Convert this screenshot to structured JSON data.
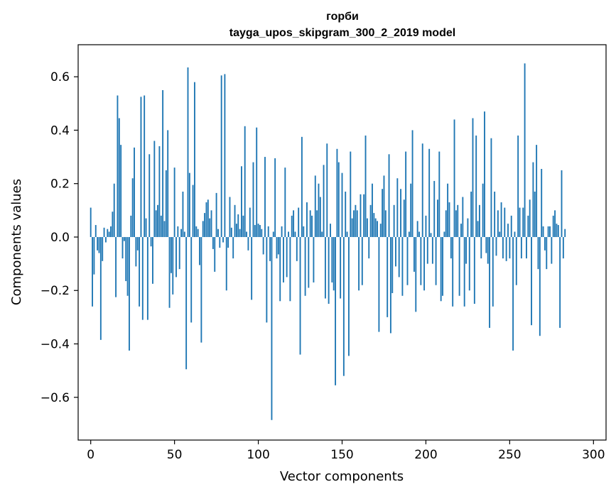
{
  "chart_data": {
    "type": "bar",
    "title": "горби",
    "subtitle": "tayga_upos_skipgram_300_2_2019 model",
    "xlabel": "Vector components",
    "ylabel": "Components values",
    "xlim": [
      -7.5,
      307.5
    ],
    "ylim": [
      -0.76,
      0.72
    ],
    "xticks": [
      0,
      50,
      100,
      150,
      200,
      250,
      300
    ],
    "yticks": [
      -0.6,
      -0.4,
      -0.2,
      0.0,
      0.2,
      0.4,
      0.6
    ],
    "xtick_labels": [
      "0",
      "50",
      "100",
      "150",
      "200",
      "250",
      "300"
    ],
    "ytick_labels": [
      "−0.6",
      "−0.4",
      "−0.2",
      "0.0",
      "0.2",
      "0.4",
      "0.6"
    ],
    "bar_color": "#1f77b4",
    "series": [
      {
        "name": "горби",
        "values": [
          0.11,
          -0.26,
          -0.14,
          0.045,
          -0.05,
          -0.06,
          -0.385,
          -0.09,
          0.035,
          -0.02,
          0.03,
          0.02,
          0.04,
          0.095,
          0.2,
          -0.225,
          0.53,
          0.445,
          0.345,
          -0.08,
          -0.015,
          -0.165,
          -0.22,
          -0.425,
          0.08,
          0.22,
          0.335,
          -0.11,
          -0.05,
          -0.26,
          0.525,
          -0.31,
          0.53,
          0.07,
          -0.31,
          0.31,
          -0.035,
          -0.175,
          0.36,
          0.1,
          0.12,
          0.34,
          0.08,
          0.55,
          0.06,
          0.25,
          0.4,
          -0.265,
          -0.135,
          -0.215,
          0.26,
          -0.15,
          0.04,
          -0.12,
          0.03,
          0.17,
          0.02,
          -0.495,
          0.635,
          0.24,
          -0.32,
          0.195,
          0.58,
          0.04,
          0.03,
          -0.105,
          -0.395,
          0.06,
          0.09,
          0.13,
          0.14,
          0.07,
          0.1,
          -0.045,
          -0.13,
          0.165,
          0.03,
          -0.04,
          0.605,
          -0.02,
          0.61,
          -0.2,
          -0.04,
          0.15,
          0.035,
          -0.08,
          0.12,
          0.05,
          0.085,
          0.03,
          0.265,
          0.08,
          0.415,
          0.02,
          -0.05,
          0.11,
          -0.235,
          0.28,
          0.045,
          0.41,
          0.05,
          0.045,
          0.03,
          -0.065,
          0.3,
          -0.32,
          0.04,
          -0.09,
          -0.685,
          0.02,
          0.295,
          -0.08,
          -0.065,
          -0.24,
          0.04,
          -0.17,
          0.26,
          -0.15,
          0.02,
          -0.24,
          0.08,
          0.1,
          0.02,
          -0.09,
          0.11,
          -0.44,
          0.375,
          0.04,
          -0.22,
          0.13,
          -0.19,
          0.1,
          0.08,
          -0.17,
          0.23,
          0.1,
          0.2,
          0.15,
          0.02,
          0.27,
          -0.23,
          0.35,
          -0.25,
          0.05,
          -0.17,
          -0.2,
          -0.555,
          0.33,
          0.28,
          -0.23,
          0.24,
          -0.52,
          0.17,
          0.02,
          -0.445,
          0.32,
          0.07,
          0.1,
          0.12,
          0.1,
          -0.2,
          0.16,
          -0.18,
          0.16,
          0.38,
          0.07,
          -0.08,
          0.12,
          0.2,
          0.09,
          0.07,
          0.06,
          -0.355,
          0.05,
          0.18,
          0.23,
          0.1,
          -0.3,
          0.31,
          -0.36,
          -0.21,
          0.12,
          -0.11,
          0.22,
          -0.15,
          0.18,
          -0.22,
          0.14,
          0.32,
          -0.18,
          0.02,
          0.2,
          0.4,
          -0.13,
          -0.28,
          0.06,
          0.02,
          -0.18,
          0.35,
          -0.2,
          0.08,
          -0.1,
          0.33,
          0.015,
          -0.1,
          0.21,
          -0.18,
          0.14,
          0.32,
          -0.24,
          -0.22,
          0.02,
          0.1,
          0.2,
          0.13,
          -0.08,
          -0.26,
          0.44,
          0.1,
          0.12,
          -0.22,
          0.05,
          0.15,
          -0.26,
          -0.1,
          0.07,
          -0.2,
          0.17,
          0.445,
          -0.25,
          0.38,
          0.06,
          0.12,
          -0.08,
          0.2,
          0.47,
          -0.06,
          -0.1,
          -0.34,
          0.37,
          -0.26,
          0.17,
          -0.07,
          0.1,
          0.02,
          0.13,
          -0.08,
          0.11,
          -0.09,
          0.05,
          -0.08,
          0.08,
          -0.425,
          0.02,
          -0.18,
          0.38,
          0.11,
          -0.08,
          0.11,
          0.65,
          -0.08,
          0.08,
          0.14,
          -0.33,
          0.28,
          0.17,
          0.345,
          -0.12,
          -0.37,
          0.255,
          0.04,
          -0.05,
          -0.12,
          0.04,
          0.04,
          -0.1,
          0.08,
          0.1,
          0.05,
          0.045,
          -0.34,
          0.25,
          -0.08,
          0.03
        ]
      }
    ]
  }
}
